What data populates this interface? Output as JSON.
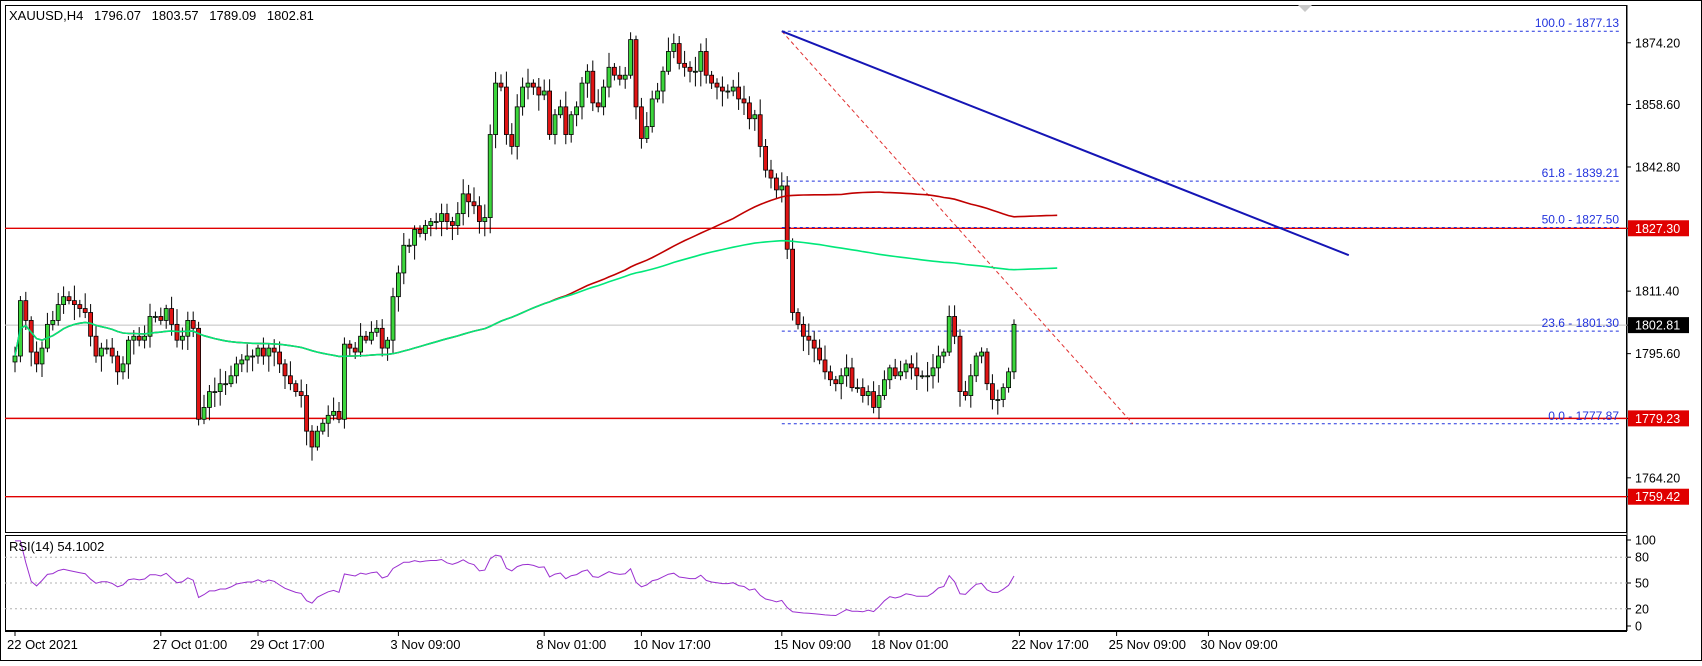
{
  "header": {
    "symbol": "XAUUSD,H4",
    "open": "1796.07",
    "high": "1803.57",
    "low": "1789.09",
    "close": "1802.81"
  },
  "chart_data": {
    "type": "candlestick",
    "symbol": "XAUUSD",
    "timeframe": "H4",
    "price_axis": {
      "ylim": [
        1750.5,
        1883.5
      ],
      "ticks": [
        "1874.20",
        "1858.60",
        "1842.80",
        "1827.30",
        "1811.40",
        "1802.81",
        "1795.60",
        "1779.23",
        "1764.20",
        "1759.42"
      ]
    },
    "time_axis": {
      "labels": [
        {
          "text": "22 Oct 2021",
          "index": 0
        },
        {
          "text": "27 Oct 01:00",
          "index": 27
        },
        {
          "text": "29 Oct 17:00",
          "index": 45
        },
        {
          "text": "3 Nov 09:00",
          "index": 71
        },
        {
          "text": "8 Nov 01:00",
          "index": 98
        },
        {
          "text": "10 Nov 17:00",
          "index": 116
        },
        {
          "text": "15 Nov 09:00",
          "index": 142
        },
        {
          "text": "18 Nov 01:00",
          "index": 160
        },
        {
          "text": "22 Nov 17:00",
          "index": 186
        },
        {
          "text": "25 Nov 09:00",
          "index": 204
        },
        {
          "text": "30 Nov 09:00",
          "index": 221
        }
      ]
    },
    "candle_closes": [
      1795,
      1809,
      1804,
      1796,
      1793,
      1797,
      1803,
      1804,
      1808,
      1810,
      1809,
      1808,
      1807,
      1806,
      1800,
      1795,
      1797,
      1797,
      1795,
      1791,
      1793,
      1799,
      1800,
      1799,
      1800,
      1805,
      1805,
      1804,
      1807,
      1803,
      1799,
      1800,
      1804,
      1802,
      1779,
      1782,
      1786,
      1786,
      1788,
      1788,
      1790,
      1793,
      1794,
      1795,
      1795,
      1797,
      1795,
      1797,
      1796,
      1793,
      1790,
      1788,
      1786,
      1785,
      1776,
      1772,
      1776,
      1778,
      1780,
      1781,
      1779,
      1798,
      1797,
      1796,
      1800,
      1799,
      1801,
      1802,
      1797,
      1799,
      1810,
      1816,
      1823,
      1823,
      1827,
      1826,
      1828,
      1829,
      1829,
      1831,
      1829,
      1828,
      1831,
      1836,
      1834,
      1833,
      1829,
      1830,
      1851,
      1864,
      1863,
      1851,
      1848,
      1858,
      1863,
      1864,
      1863,
      1861,
      1862,
      1851,
      1856,
      1858,
      1851,
      1856,
      1858,
      1864,
      1867,
      1859,
      1858,
      1863,
      1868,
      1866,
      1865,
      1866,
      1875,
      1858,
      1850,
      1853,
      1860,
      1862,
      1867,
      1872,
      1874,
      1869,
      1868,
      1867,
      1867,
      1872,
      1866,
      1864,
      1863,
      1862,
      1862,
      1863,
      1860,
      1859,
      1855,
      1856,
      1848,
      1842,
      1840,
      1837,
      1838,
      1822,
      1806,
      1803,
      1800,
      1799,
      1797,
      1794,
      1791,
      1789,
      1788,
      1790,
      1792,
      1787,
      1787,
      1785,
      1786,
      1782,
      1785,
      1789,
      1792,
      1790,
      1791,
      1793,
      1792,
      1790,
      1790,
      1790,
      1792,
      1795,
      1796,
      1805,
      1800,
      1786,
      1785,
      1790,
      1795,
      1796,
      1788,
      1784,
      1784,
      1787,
      1791,
      1803
    ],
    "indicators": [
      {
        "type": "moving-average",
        "color": "#c00000"
      },
      {
        "type": "moving-average",
        "color": "#00e87a"
      }
    ],
    "fibonacci": {
      "color": "#2233dd",
      "levels": [
        {
          "label": "100.0 - 1877.13",
          "price": 1877.13
        },
        {
          "label": "61.8 - 1839.21",
          "price": 1839.21
        },
        {
          "label": "50.0 - 1827.50",
          "price": 1827.5
        },
        {
          "label": "23.6 - 1801.30",
          "price": 1801.3
        },
        {
          "label": "0.0 - 1777.87",
          "price": 1777.87
        }
      ]
    },
    "trendline": {
      "from": {
        "index": 142,
        "price": 1877.13
      },
      "to": {
        "index": 247,
        "price": 1820.5
      },
      "color": "#1515b5"
    },
    "horizontal_levels": [
      {
        "label": "1827.30",
        "price": 1827.3
      },
      {
        "label": "1779.23",
        "price": 1779.23
      },
      {
        "label": "1759.42",
        "price": 1759.42
      }
    ],
    "current_price": {
      "label": "1802.81",
      "price": 1802.81
    },
    "rsi": {
      "label": "RSI(14) 54.1002",
      "period": 14,
      "value": 54.1002,
      "ylim": [
        0,
        100
      ],
      "ticks": [
        "100",
        "80",
        "50",
        "20",
        "0"
      ],
      "color": "#9b30d0"
    }
  }
}
